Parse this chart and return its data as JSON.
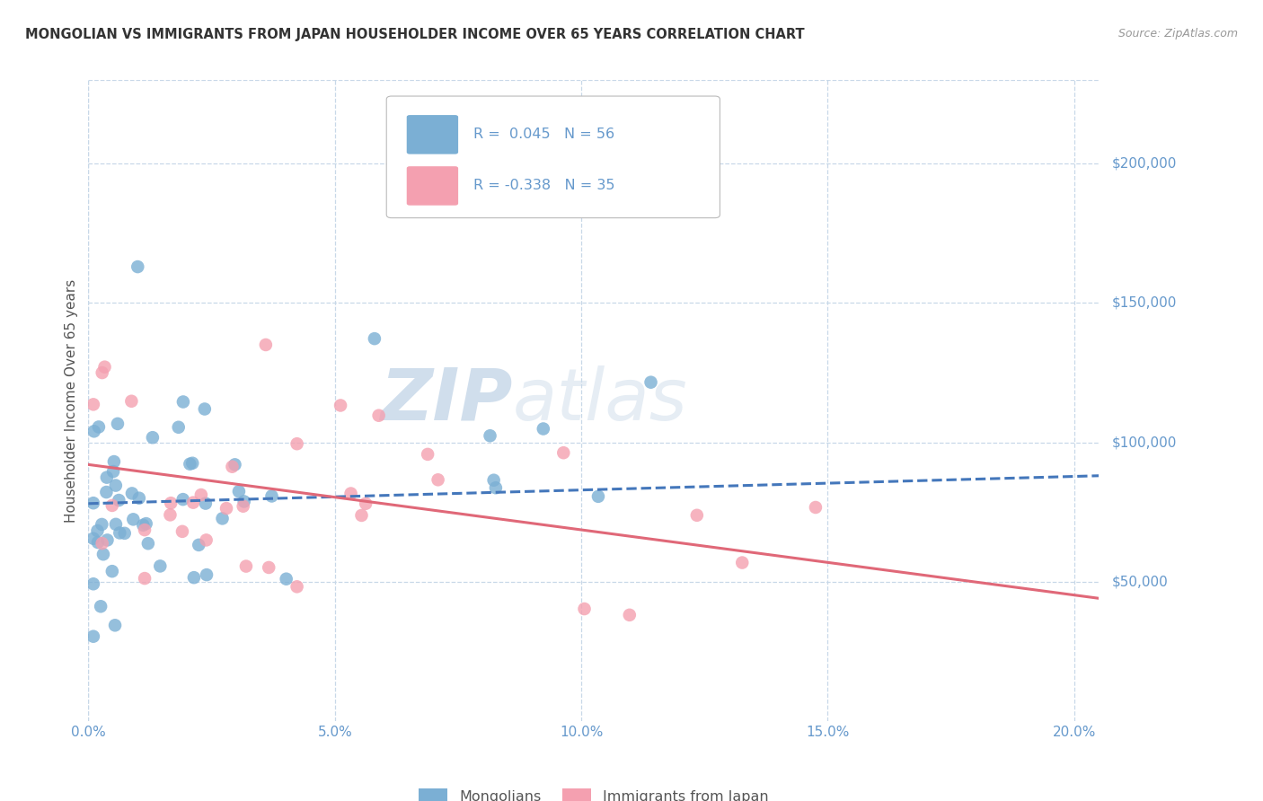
{
  "title": "MONGOLIAN VS IMMIGRANTS FROM JAPAN HOUSEHOLDER INCOME OVER 65 YEARS CORRELATION CHART",
  "source": "Source: ZipAtlas.com",
  "ylabel": "Householder Income Over 65 years",
  "xlim": [
    0.0,
    0.205
  ],
  "ylim": [
    0,
    230000
  ],
  "xticks": [
    0.0,
    0.05,
    0.1,
    0.15,
    0.2
  ],
  "xticklabels": [
    "0.0%",
    "5.0%",
    "10.0%",
    "15.0%",
    "20.0%"
  ],
  "yticks_right": [
    50000,
    100000,
    150000,
    200000
  ],
  "ytick_labels_right": [
    "$50,000",
    "$100,000",
    "$150,000",
    "$200,000"
  ],
  "mongolian_color": "#7bafd4",
  "japan_color": "#f4a0b0",
  "mongolian_line_color": "#4477bb",
  "japan_line_color": "#e06878",
  "legend1": "Mongolians",
  "legend2": "Immigrants from Japan",
  "watermark_zip": "ZIP",
  "watermark_atlas": "atlas",
  "mongolian_R": 0.045,
  "mongolian_N": 56,
  "japan_R": -0.338,
  "japan_N": 35,
  "background_color": "#ffffff",
  "grid_color": "#c8d8e8",
  "tick_color": "#6699cc",
  "title_color": "#333333",
  "source_color": "#999999",
  "ylabel_color": "#555555"
}
